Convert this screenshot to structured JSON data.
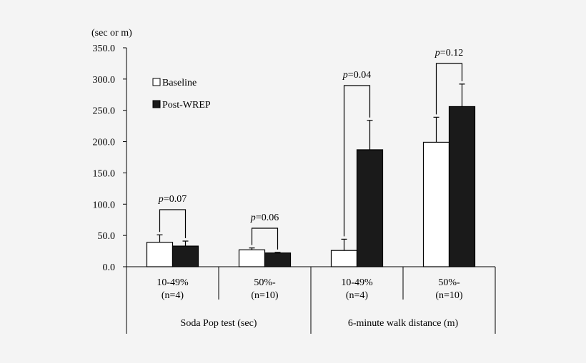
{
  "chart_data": {
    "type": "bar",
    "ylabel": "(sec or m)",
    "ylim": [
      0,
      350
    ],
    "yticks": [
      "0.0",
      "50.0",
      "100.0",
      "150.0",
      "200.0",
      "250.0",
      "300.0",
      "350.0"
    ],
    "groups": [
      {
        "label": "Soda Pop test (sec)",
        "categories": [
          {
            "line1": "10-49%",
            "line2": "(n=4)"
          },
          {
            "line1": "50%-",
            "line2": "(n=10)"
          }
        ]
      },
      {
        "label": "6-minute walk distance (m)",
        "categories": [
          {
            "line1": "10-49%",
            "line2": "(n=4)"
          },
          {
            "line1": "50%-",
            "line2": "(n=10)"
          }
        ]
      }
    ],
    "series": [
      {
        "name": "Baseline",
        "color": "#ffffff",
        "values": [
          39,
          27,
          26,
          199
        ],
        "errors": [
          12,
          3,
          18,
          40
        ]
      },
      {
        "name": "Post-WREP",
        "color": "#1a1a1a",
        "values": [
          33,
          22,
          187,
          256
        ],
        "errors": [
          8,
          1,
          47,
          36
        ]
      }
    ],
    "pvalues": [
      {
        "label": "p",
        "value": "=0.07"
      },
      {
        "label": "p",
        "value": "=0.06"
      },
      {
        "label": "p",
        "value": "=0.04"
      },
      {
        "label": "p",
        "value": "=0.12"
      }
    ],
    "legend": "top-left"
  }
}
